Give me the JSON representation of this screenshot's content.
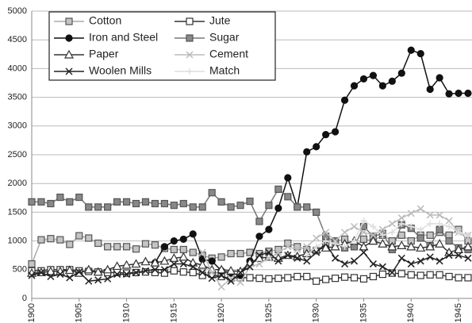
{
  "chart_data": {
    "type": "line",
    "x": [
      1900,
      1901,
      1902,
      1903,
      1904,
      1905,
      1906,
      1907,
      1908,
      1909,
      1910,
      1911,
      1912,
      1913,
      1914,
      1915,
      1916,
      1917,
      1918,
      1919,
      1920,
      1921,
      1922,
      1923,
      1924,
      1925,
      1926,
      1927,
      1928,
      1929,
      1930,
      1931,
      1932,
      1933,
      1934,
      1935,
      1936,
      1937,
      1938,
      1939,
      1940,
      1941,
      1942,
      1943,
      1944,
      1945,
      1946
    ],
    "xlim": [
      1900,
      1946
    ],
    "xticks": [
      1900,
      1905,
      1910,
      1915,
      1920,
      1925,
      1930,
      1935,
      1940,
      1945
    ],
    "ylim": [
      0,
      5000
    ],
    "yticks": [
      0,
      500,
      1000,
      1500,
      2000,
      2500,
      3000,
      3500,
      4000,
      4500,
      5000
    ],
    "grid": true,
    "series": [
      {
        "name": "Cotton",
        "color": "#aaaaaa",
        "marker": "square",
        "marker_fill": "#c4c4c4",
        "values": [
          600,
          1020,
          1040,
          1020,
          940,
          1090,
          1050,
          960,
          900,
          900,
          900,
          860,
          950,
          930,
          870,
          850,
          850,
          800,
          750,
          700,
          720,
          780,
          780,
          800,
          780,
          820,
          850,
          960,
          900,
          850,
          830,
          950,
          1000,
          1030,
          900,
          1030,
          1000,
          1100,
          1000,
          1100,
          1000,
          1100,
          1100,
          1150,
          1100,
          1200,
          1000
        ]
      },
      {
        "name": "Jute",
        "color": "#333333",
        "marker": "square",
        "marker_fill": "#ffffff",
        "values": [
          480,
          480,
          500,
          500,
          500,
          480,
          470,
          460,
          450,
          450,
          440,
          450,
          460,
          450,
          440,
          480,
          460,
          450,
          400,
          420,
          380,
          350,
          360,
          360,
          350,
          340,
          350,
          360,
          380,
          380,
          300,
          330,
          350,
          370,
          360,
          340,
          380,
          420,
          440,
          430,
          410,
          400,
          410,
          410,
          380,
          360,
          360
        ]
      },
      {
        "name": "Iron and Steel",
        "color": "#111111",
        "marker": "circle",
        "marker_fill": "#111111",
        "values": [
          null,
          null,
          null,
          null,
          null,
          null,
          null,
          null,
          null,
          null,
          null,
          null,
          null,
          620,
          900,
          1000,
          1030,
          1120,
          680,
          650,
          480,
          440,
          400,
          650,
          1080,
          1200,
          1570,
          2100,
          1590,
          2550,
          2640,
          2850,
          2900,
          3450,
          3700,
          3820,
          3880,
          3700,
          3780,
          3920,
          4320,
          4260,
          3640,
          3840,
          3560,
          3570,
          3570
        ]
      },
      {
        "name": "Sugar",
        "color": "#777777",
        "marker": "square",
        "marker_fill": "#888888",
        "values": [
          1680,
          1680,
          1650,
          1760,
          1680,
          1760,
          1590,
          1590,
          1590,
          1680,
          1680,
          1650,
          1680,
          1650,
          1650,
          1620,
          1650,
          1590,
          1590,
          1840,
          1680,
          1590,
          1620,
          1690,
          1340,
          1620,
          1900,
          1770,
          1590,
          1590,
          1500,
          1080,
          980,
          880,
          900,
          1250,
          1080,
          1130,
          850,
          1280,
          1220,
          1050,
          920,
          1200,
          1000,
          880,
          850
        ]
      },
      {
        "name": "Paper",
        "color": "#333333",
        "marker": "triangle",
        "marker_fill": "#ffffff",
        "values": [
          440,
          450,
          470,
          470,
          490,
          440,
          500,
          460,
          500,
          560,
          580,
          600,
          640,
          620,
          650,
          700,
          720,
          620,
          580,
          500,
          500,
          480,
          470,
          620,
          700,
          720,
          700,
          750,
          730,
          780,
          850,
          880,
          900,
          950,
          1000,
          900,
          1000,
          950,
          900,
          920,
          900,
          880,
          900,
          950,
          800,
          850,
          900
        ]
      },
      {
        "name": "Cement",
        "color": "#bbbbbb",
        "marker": "x",
        "marker_fill": "none",
        "values": [
          null,
          null,
          null,
          null,
          null,
          null,
          null,
          null,
          null,
          null,
          null,
          null,
          null,
          null,
          null,
          null,
          null,
          null,
          800,
          450,
          200,
          350,
          280,
          550,
          600,
          700,
          800,
          900,
          850,
          900,
          1050,
          1150,
          1000,
          1150,
          1250,
          1150,
          1100,
          1200,
          1300,
          1400,
          1480,
          1560,
          1450,
          1450,
          1350,
          1150,
          1100
        ]
      },
      {
        "name": "Woolen Mills",
        "color": "#222222",
        "marker": "x",
        "marker_fill": "none",
        "values": [
          400,
          450,
          380,
          420,
          360,
          460,
          300,
          320,
          340,
          420,
          420,
          450,
          480,
          500,
          500,
          600,
          600,
          550,
          450,
          350,
          400,
          300,
          450,
          550,
          750,
          800,
          650,
          750,
          700,
          650,
          800,
          950,
          700,
          600,
          650,
          800,
          600,
          550,
          450,
          700,
          600,
          650,
          720,
          650,
          750,
          750,
          700
        ]
      },
      {
        "name": "Match",
        "color": "#dddddd",
        "marker": "plus",
        "marker_fill": "none",
        "values": [
          null,
          null,
          null,
          null,
          null,
          null,
          null,
          null,
          null,
          null,
          null,
          null,
          null,
          null,
          null,
          null,
          null,
          null,
          null,
          null,
          null,
          null,
          null,
          null,
          null,
          null,
          null,
          null,
          null,
          750,
          900,
          1000,
          950,
          900,
          1000,
          1350,
          1250,
          1100,
          1150,
          1300,
          1250,
          1200,
          1300,
          1300,
          1250,
          1150,
          1100
        ]
      }
    ]
  }
}
